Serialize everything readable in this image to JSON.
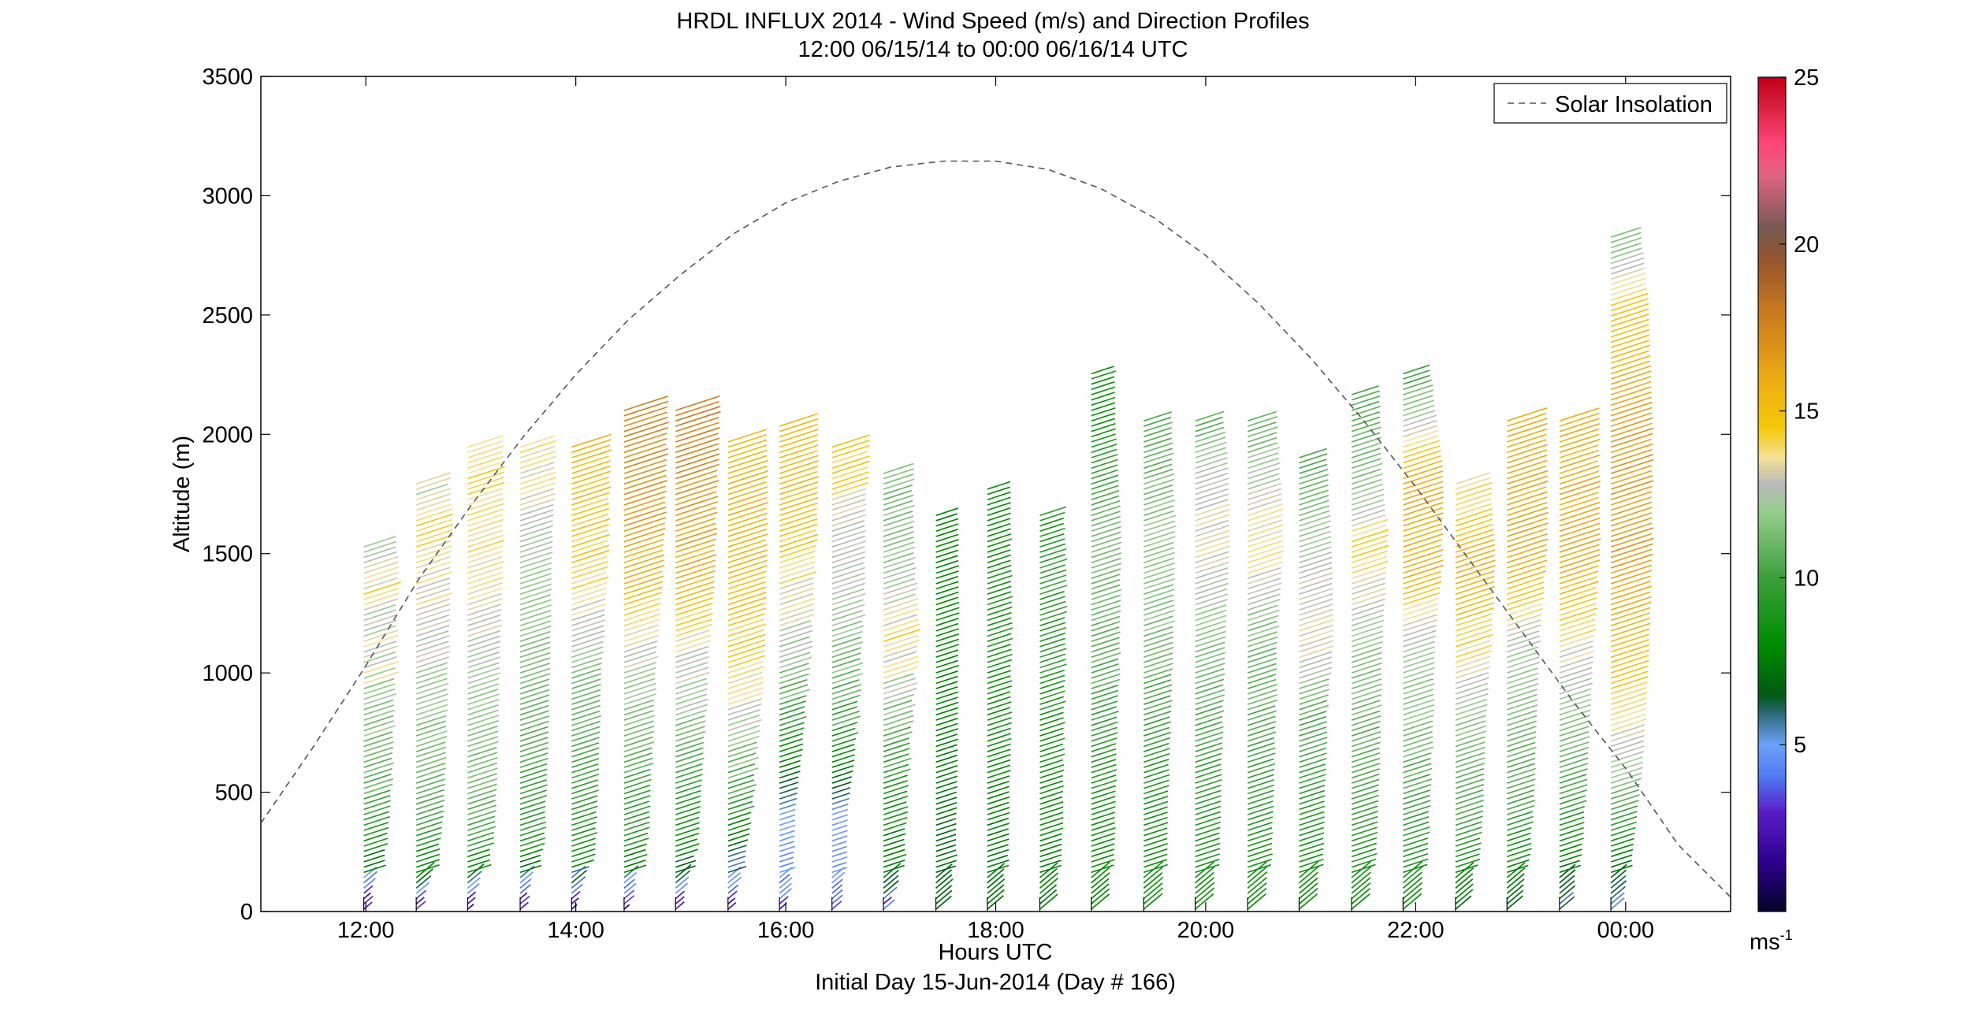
{
  "chart_data": {
    "type": "wind-barb-profile",
    "title": "HRDL INFLUX 2014 - Wind Speed (m/s) and Direction Profiles",
    "subtitle": "12:00 06/15/14 to 00:00 06/16/14  UTC",
    "xlabel": "Hours UTC",
    "xlabel2": "Initial Day 15-Jun-2014 (Day # 166)",
    "ylabel": "Altitude (m)",
    "xlim": [
      11.0,
      25.0
    ],
    "ylim": [
      0,
      3500
    ],
    "xticks": [
      12,
      14,
      16,
      18,
      20,
      22,
      24
    ],
    "xtick_labels": [
      "12:00",
      "14:00",
      "16:00",
      "18:00",
      "20:00",
      "22:00",
      "00:00"
    ],
    "yticks": [
      0,
      500,
      1000,
      1500,
      2000,
      2500,
      3000,
      3500
    ],
    "ytick_labels": [
      "0",
      "500",
      "1000",
      "1500",
      "2000",
      "2500",
      "3000",
      "3500"
    ],
    "grid": false,
    "legend": {
      "entries": [
        "Solar Insolation"
      ],
      "placement": "top-right",
      "style": "dashed",
      "color": "#555555"
    },
    "solar_insolation": {
      "x": [
        11.0,
        11.5,
        12.0,
        12.5,
        13.0,
        13.5,
        14.0,
        14.5,
        15.0,
        15.5,
        16.0,
        16.5,
        17.0,
        17.5,
        18.0,
        18.5,
        19.0,
        19.5,
        20.0,
        20.5,
        21.0,
        21.5,
        22.0,
        22.5,
        23.0,
        23.5,
        24.0,
        24.5,
        25.0
      ],
      "y": [
        370,
        690,
        1030,
        1390,
        1700,
        1990,
        2250,
        2480,
        2670,
        2840,
        2970,
        3060,
        3120,
        3145,
        3145,
        3110,
        3030,
        2910,
        2750,
        2550,
        2320,
        2060,
        1780,
        1480,
        1180,
        880,
        600,
        280,
        60
      ]
    },
    "colorbar": {
      "label": "ms-1",
      "range": [
        0,
        25
      ],
      "ticks": [
        5,
        10,
        15,
        20,
        25
      ],
      "tick_labels": [
        "5",
        "10",
        "15",
        "20",
        "25"
      ]
    },
    "profiles": [
      {
        "time": 11.98,
        "top": 1530,
        "u": [
          [
            0,
            0.5,
            4.5
          ],
          [
            60,
            1.5,
            5.0
          ],
          [
            150,
            5.0,
            8.0
          ],
          [
            300,
            8.5,
            9.5
          ],
          [
            500,
            10.0,
            11.0
          ],
          [
            800,
            10.8,
            12.4
          ],
          [
            1000,
            11.5,
            14.0
          ],
          [
            1200,
            12.0,
            14.3
          ],
          [
            1400,
            12.5,
            14.8
          ],
          [
            1500,
            12.5,
            11.5
          ]
        ]
      },
      {
        "time": 12.48,
        "top": 1800,
        "u": [
          [
            0,
            1.0,
            3.5
          ],
          [
            60,
            3.0,
            5.0
          ],
          [
            150,
            6.0,
            8.5
          ],
          [
            300,
            9.0,
            10.0
          ],
          [
            500,
            10.5,
            11.0
          ],
          [
            900,
            11.5,
            12.5
          ],
          [
            1200,
            12.5,
            14.0
          ],
          [
            1600,
            13.5,
            14.8
          ],
          [
            1800,
            13.5,
            11.0
          ]
        ]
      },
      {
        "time": 12.97,
        "top": 1960,
        "u": [
          [
            0,
            0.5,
            3.0
          ],
          [
            60,
            2.5,
            4.5
          ],
          [
            150,
            6.0,
            8.5
          ],
          [
            300,
            9.0,
            10.5
          ],
          [
            500,
            10.5,
            11.2
          ],
          [
            900,
            11.5,
            12.3
          ],
          [
            1300,
            13.0,
            13.8
          ],
          [
            1700,
            13.5,
            14.8
          ],
          [
            1960,
            13.5,
            14.5
          ]
        ]
      },
      {
        "time": 13.47,
        "top": 1960,
        "u": [
          [
            0,
            0.5,
            3.0
          ],
          [
            60,
            2.0,
            4.0
          ],
          [
            150,
            5.5,
            8.0
          ],
          [
            300,
            8.5,
            9.5
          ],
          [
            600,
            10.0,
            10.5
          ],
          [
            1000,
            11.0,
            11.5
          ],
          [
            1500,
            12.0,
            12.5
          ],
          [
            1800,
            13.0,
            14.5
          ],
          [
            1960,
            13.5,
            14.5
          ]
        ]
      },
      {
        "time": 13.96,
        "top": 1960,
        "u": [
          [
            0,
            0.5,
            2.5
          ],
          [
            60,
            2.0,
            4.0
          ],
          [
            150,
            5.5,
            8.0
          ],
          [
            300,
            8.5,
            9.5
          ],
          [
            600,
            10.0,
            10.5
          ],
          [
            1000,
            11.0,
            12.0
          ],
          [
            1400,
            13.5,
            15.0
          ],
          [
            1800,
            14.5,
            16.0
          ],
          [
            1960,
            14.5,
            16.0
          ]
        ]
      },
      {
        "time": 14.46,
        "top": 2120,
        "u": [
          [
            0,
            0.5,
            3.0
          ],
          [
            60,
            2.0,
            4.0
          ],
          [
            150,
            5.0,
            8.0
          ],
          [
            300,
            8.5,
            9.5
          ],
          [
            600,
            10.0,
            11.0
          ],
          [
            1000,
            12.0,
            13.0
          ],
          [
            1400,
            15.0,
            16.0
          ],
          [
            1800,
            16.5,
            17.5
          ],
          [
            2120,
            17.0,
            18.0
          ]
        ]
      },
      {
        "time": 14.95,
        "top": 2120,
        "u": [
          [
            0,
            0.5,
            3.0
          ],
          [
            60,
            2.5,
            4.5
          ],
          [
            150,
            5.0,
            7.5
          ],
          [
            300,
            8.0,
            9.0
          ],
          [
            600,
            10.0,
            11.0
          ],
          [
            1000,
            12.0,
            13.5
          ],
          [
            1400,
            15.0,
            16.0
          ],
          [
            1800,
            16.5,
            17.5
          ],
          [
            2120,
            17.5,
            18.5
          ]
        ]
      },
      {
        "time": 15.45,
        "top": 1970,
        "u": [
          [
            0,
            0.5,
            3.0
          ],
          [
            60,
            2.5,
            4.5
          ],
          [
            150,
            4.0,
            6.5
          ],
          [
            300,
            7.0,
            8.5
          ],
          [
            600,
            10.0,
            12.0
          ],
          [
            900,
            13.0,
            14.0
          ],
          [
            1300,
            14.5,
            15.5
          ],
          [
            1700,
            15.0,
            16.0
          ],
          [
            1970,
            15.0,
            15.5
          ]
        ]
      },
      {
        "time": 15.94,
        "top": 2040,
        "u": [
          [
            0,
            0.5,
            3.0
          ],
          [
            60,
            3.0,
            5.0
          ],
          [
            150,
            4.0,
            5.0
          ],
          [
            400,
            5.0,
            5.0
          ],
          [
            800,
            9.0,
            11.0
          ],
          [
            1200,
            12.0,
            13.5
          ],
          [
            1600,
            14.5,
            15.5
          ],
          [
            2040,
            15.0,
            15.5
          ]
        ]
      },
      {
        "time": 16.44,
        "top": 1960,
        "u": [
          [
            0,
            0.5,
            3.0
          ],
          [
            60,
            3.5,
            5.0
          ],
          [
            150,
            4.0,
            5.0
          ],
          [
            400,
            5.0,
            5.0
          ],
          [
            800,
            9.0,
            11.0
          ],
          [
            1200,
            11.5,
            13.0
          ],
          [
            1600,
            12.5,
            13.0
          ],
          [
            1800,
            13.5,
            15.0
          ],
          [
            1960,
            13.5,
            15.0
          ]
        ]
      },
      {
        "time": 16.93,
        "top": 1840,
        "u": [
          [
            0,
            0.5,
            4.0
          ],
          [
            100,
            6.0,
            8.0
          ],
          [
            400,
            8.0,
            9.0
          ],
          [
            800,
            10.0,
            12.0
          ],
          [
            1100,
            13.0,
            15.0
          ],
          [
            1500,
            11.0,
            12.0
          ],
          [
            1840,
            10.5,
            12.0
          ]
        ]
      },
      {
        "time": 17.43,
        "top": 1670,
        "u": [
          [
            0,
            6.5,
            7.5
          ],
          [
            400,
            7.0,
            7.5
          ],
          [
            800,
            7.5,
            8.0
          ],
          [
            1200,
            8.0,
            8.5
          ],
          [
            1670,
            7.5,
            8.0
          ]
        ]
      },
      {
        "time": 17.92,
        "top": 1780,
        "u": [
          [
            0,
            6.5,
            7.5
          ],
          [
            400,
            7.5,
            8.0
          ],
          [
            800,
            8.0,
            9.0
          ],
          [
            1200,
            8.5,
            9.5
          ],
          [
            1780,
            8.0,
            8.5
          ]
        ]
      },
      {
        "time": 18.42,
        "top": 1680,
        "u": [
          [
            0,
            7.0,
            8.0
          ],
          [
            400,
            8.0,
            8.5
          ],
          [
            800,
            8.5,
            9.5
          ],
          [
            1200,
            9.0,
            10.5
          ],
          [
            1680,
            8.5,
            10.0
          ]
        ]
      },
      {
        "time": 18.91,
        "top": 2270,
        "u": [
          [
            0,
            7.5,
            8.0
          ],
          [
            400,
            8.5,
            9.0
          ],
          [
            800,
            9.0,
            10.5
          ],
          [
            1200,
            10.5,
            11.5
          ],
          [
            1600,
            11.0,
            11.5
          ],
          [
            2000,
            8.5,
            9.0
          ],
          [
            2270,
            8.0,
            9.0
          ]
        ]
      },
      {
        "time": 19.41,
        "top": 2070,
        "u": [
          [
            0,
            8.0,
            8.5
          ],
          [
            400,
            8.5,
            9.0
          ],
          [
            800,
            9.5,
            10.5
          ],
          [
            1200,
            11.0,
            12.0
          ],
          [
            1600,
            11.5,
            12.5
          ],
          [
            2070,
            9.5,
            10.5
          ]
        ]
      },
      {
        "time": 19.9,
        "top": 2060,
        "u": [
          [
            0,
            8.0,
            8.5
          ],
          [
            400,
            9.0,
            9.5
          ],
          [
            800,
            10.0,
            11.0
          ],
          [
            1200,
            11.5,
            12.0
          ],
          [
            1500,
            13.0,
            14.0
          ],
          [
            1800,
            12.5,
            13.0
          ],
          [
            2060,
            10.0,
            11.0
          ]
        ]
      },
      {
        "time": 20.4,
        "top": 2070,
        "u": [
          [
            0,
            8.0,
            8.5
          ],
          [
            400,
            9.0,
            9.5
          ],
          [
            800,
            10.0,
            11.0
          ],
          [
            1200,
            11.0,
            12.0
          ],
          [
            1500,
            13.5,
            14.5
          ],
          [
            1800,
            12.0,
            13.0
          ],
          [
            2070,
            10.0,
            11.0
          ]
        ]
      },
      {
        "time": 20.89,
        "top": 1920,
        "u": [
          [
            0,
            8.0,
            8.5
          ],
          [
            400,
            9.0,
            9.5
          ],
          [
            800,
            10.0,
            11.0
          ],
          [
            1100,
            13.0,
            14.0
          ],
          [
            1400,
            12.5,
            13.0
          ],
          [
            1920,
            10.0,
            10.5
          ]
        ]
      },
      {
        "time": 21.39,
        "top": 2170,
        "u": [
          [
            0,
            8.0,
            8.5
          ],
          [
            400,
            9.5,
            10.0
          ],
          [
            800,
            10.5,
            11.5
          ],
          [
            1100,
            11.5,
            12.0
          ],
          [
            1500,
            14.0,
            15.0
          ],
          [
            1800,
            11.0,
            12.0
          ],
          [
            2170,
            10.0,
            10.5
          ]
        ]
      },
      {
        "time": 21.88,
        "top": 2270,
        "u": [
          [
            0,
            8.0,
            8.5
          ],
          [
            400,
            9.5,
            10.5
          ],
          [
            800,
            11.0,
            12.0
          ],
          [
            1100,
            12.0,
            12.5
          ],
          [
            1400,
            15.0,
            16.0
          ],
          [
            1800,
            15.5,
            16.0
          ],
          [
            2270,
            9.0,
            10.0
          ]
        ]
      },
      {
        "time": 22.38,
        "top": 1800,
        "u": [
          [
            0,
            6.5,
            7.5
          ],
          [
            400,
            10.0,
            10.5
          ],
          [
            800,
            11.5,
            12.0
          ],
          [
            1100,
            13.5,
            14.5
          ],
          [
            1400,
            15.5,
            16.0
          ],
          [
            1800,
            13.0,
            14.0
          ]
        ]
      },
      {
        "time": 22.87,
        "top": 2060,
        "u": [
          [
            0,
            6.0,
            7.0
          ],
          [
            400,
            9.5,
            10.5
          ],
          [
            800,
            11.0,
            11.5
          ],
          [
            1100,
            12.0,
            13.0
          ],
          [
            1500,
            15.5,
            16.5
          ],
          [
            2060,
            15.5,
            16.0
          ]
        ]
      },
      {
        "time": 23.37,
        "top": 2060,
        "u": [
          [
            0,
            5.0,
            6.5
          ],
          [
            400,
            9.0,
            10.0
          ],
          [
            800,
            11.5,
            12.0
          ],
          [
            1100,
            13.0,
            14.0
          ],
          [
            1500,
            15.5,
            16.5
          ],
          [
            2060,
            15.0,
            16.0
          ]
        ]
      },
      {
        "time": 23.86,
        "top": 2840,
        "u": [
          [
            0,
            5.0,
            6.0
          ],
          [
            400,
            9.5,
            10.0
          ],
          [
            600,
            12.0,
            13.0
          ],
          [
            1000,
            14.5,
            15.0
          ],
          [
            1500,
            16.0,
            17.0
          ],
          [
            2000,
            16.0,
            17.0
          ],
          [
            2300,
            15.0,
            15.5
          ],
          [
            2500,
            14.5,
            15.0
          ],
          [
            2840,
            10.5,
            11.5
          ]
        ]
      }
    ]
  }
}
